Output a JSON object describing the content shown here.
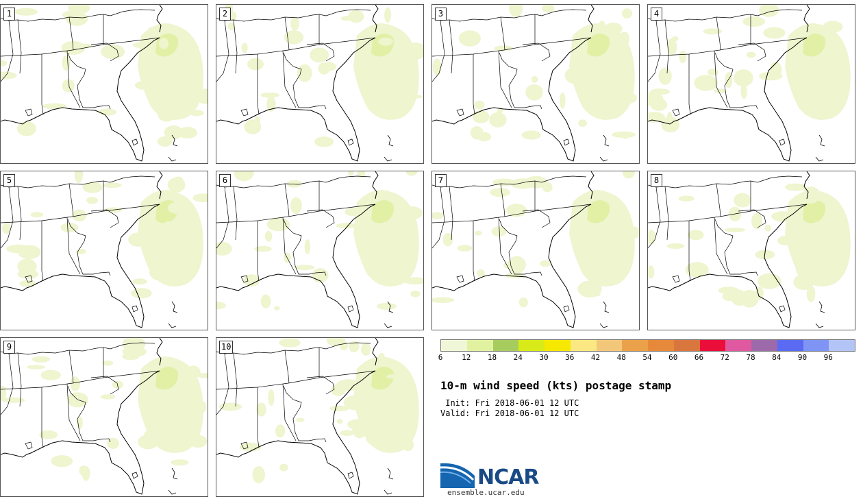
{
  "panels": [
    {
      "number": "1"
    },
    {
      "number": "2"
    },
    {
      "number": "3"
    },
    {
      "number": "4"
    },
    {
      "number": "5"
    },
    {
      "number": "6"
    },
    {
      "number": "7"
    },
    {
      "number": "8"
    },
    {
      "number": "9"
    },
    {
      "number": "10"
    }
  ],
  "colorbar": {
    "colors": [
      "#f0f6d8",
      "#e0f2a0",
      "#a6cc5e",
      "#d8ea18",
      "#f6e800",
      "#fbe882",
      "#f3c77a",
      "#eba149",
      "#e6893a",
      "#d9763d",
      "#ec0e3a",
      "#e058a0",
      "#9c6aaa",
      "#5a6af2",
      "#7f94f5",
      "#b3c5f7"
    ],
    "ticks": [
      "6",
      "12",
      "18",
      "24",
      "30",
      "36",
      "42",
      "48",
      "54",
      "60",
      "66",
      "72",
      "78",
      "84",
      "90",
      "96"
    ]
  },
  "title": "10-m wind speed (kts) postage stamp",
  "init": " Init: Fri 2018-06-01 12 UTC",
  "valid": "Valid: Fri 2018-06-01 12 UTC",
  "logo": {
    "word": "NCAR",
    "url": "ensemble.ucar.edu"
  }
}
